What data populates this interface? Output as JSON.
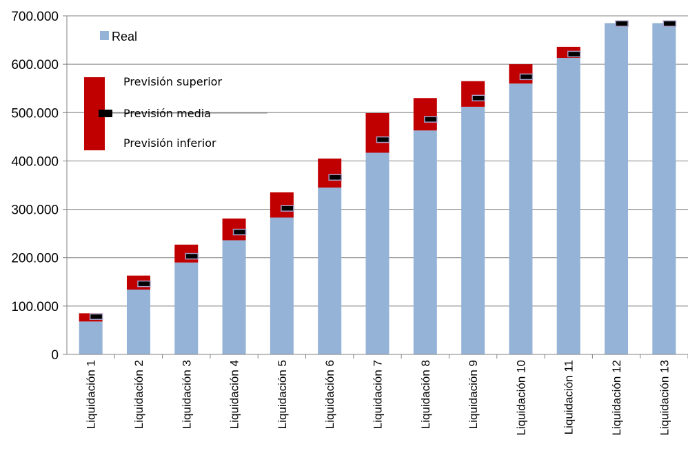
{
  "chart_data": {
    "type": "bar",
    "categories": [
      "Liquidación 1",
      "Liquidación 2",
      "Liquidación 3",
      "Liquidación 4",
      "Liquidación 5",
      "Liquidación 6",
      "Liquidación 7",
      "Liquidación 8",
      "Liquidación 9",
      "Liquidación 10",
      "Liquidación 11",
      "Liquidación 12",
      "Liquidación 13"
    ],
    "series": [
      {
        "name": "Real",
        "color": "#95b3d7",
        "values": [
          68000,
          134000,
          190000,
          236000,
          283000,
          345000,
          417000,
          463000,
          512000,
          560000,
          613000,
          685000,
          685000
        ]
      },
      {
        "name": "Previsión superior",
        "color": "#c00000",
        "values": [
          85000,
          163000,
          227000,
          281000,
          335000,
          405000,
          499000,
          530000,
          565000,
          600000,
          636000,
          685000,
          685000
        ]
      },
      {
        "name": "Previsión media",
        "color": "#000000",
        "values": [
          78000,
          146000,
          203000,
          253000,
          302000,
          366000,
          444000,
          486000,
          530000,
          574000,
          621000,
          684000,
          684000
        ]
      },
      {
        "name": "Previsión inferior",
        "values": [
          68000,
          134000,
          190000,
          236000,
          283000,
          345000,
          417000,
          463000,
          512000,
          560000,
          613000,
          685000,
          685000
        ]
      }
    ],
    "y_ticks": [
      "0",
      "100.000",
      "200.000",
      "300.000",
      "400.000",
      "500.000",
      "600.000",
      "700.000"
    ],
    "ylim": [
      0,
      700000
    ],
    "grid": true,
    "legend_placement": "top-left",
    "title": "",
    "xlabel": "",
    "ylabel": ""
  }
}
